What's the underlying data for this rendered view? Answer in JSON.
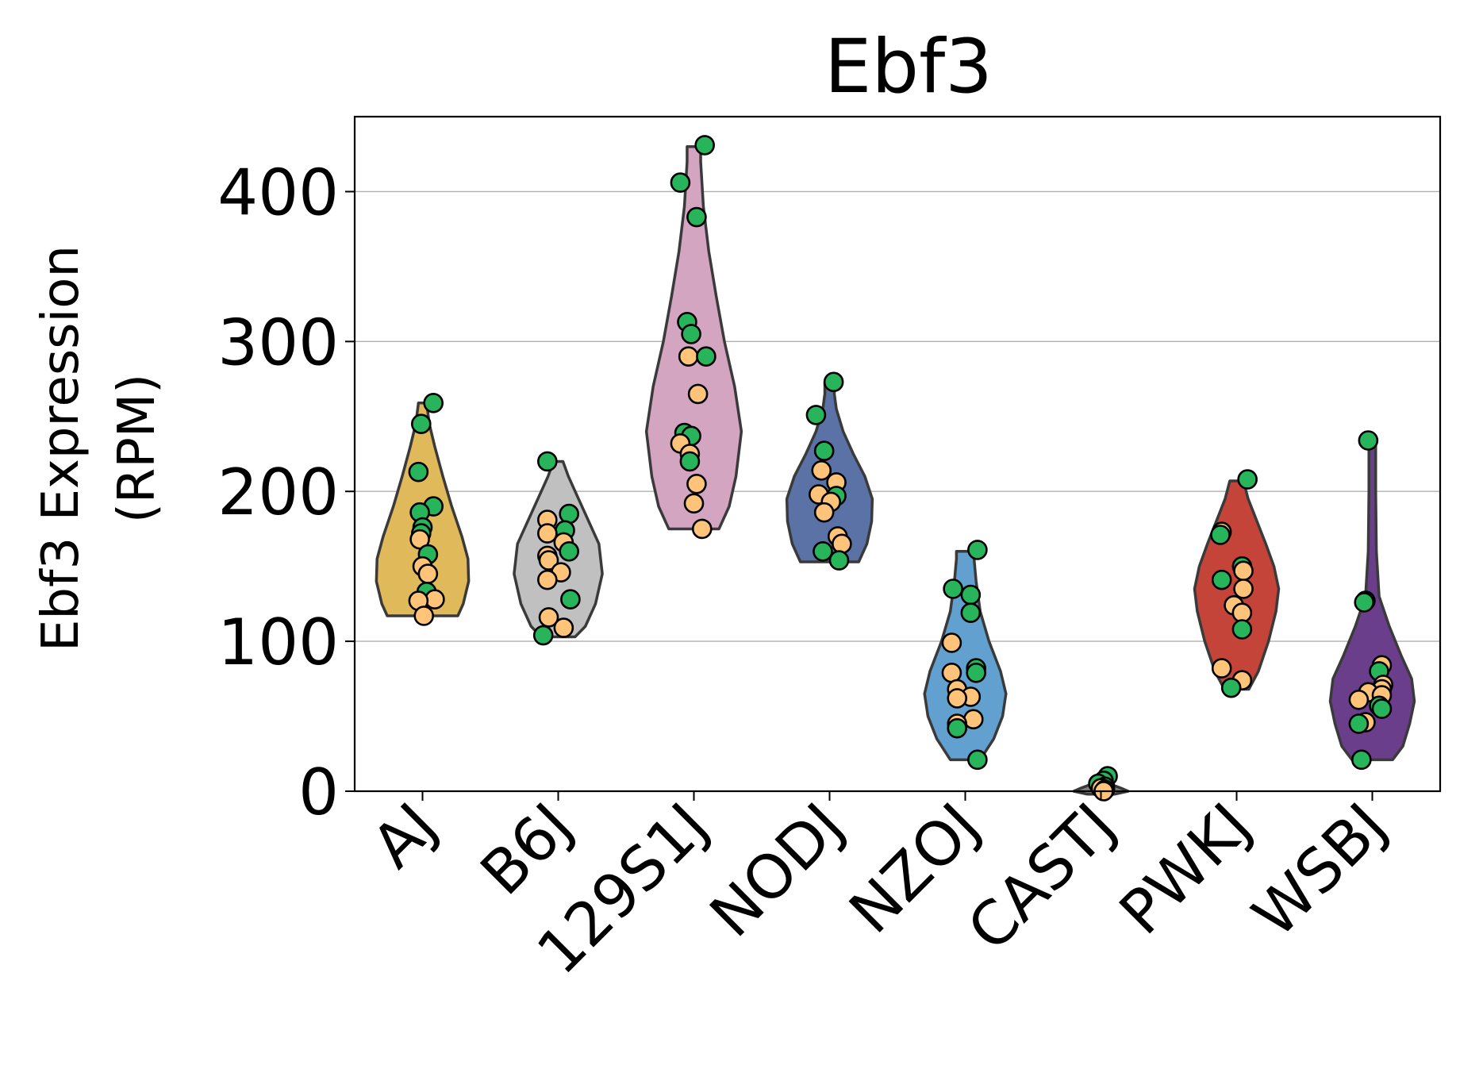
{
  "chart_data": {
    "type": "violin",
    "title": "Ebf3",
    "ylabel_line1": "Ebf3 Expression",
    "ylabel_line2": "(RPM)",
    "xlabel": "",
    "ylim": [
      0,
      450
    ],
    "yticks": [
      0,
      100,
      200,
      300,
      400
    ],
    "grid": "horizontal",
    "categories": [
      "AJ",
      "B6J",
      "129S1J",
      "NODJ",
      "NZOJ",
      "CASTJ",
      "PWKJ",
      "WSBJ"
    ],
    "group_colors": {
      "AJ": "#dfb95a",
      "B6J": "#c0c0c0",
      "129S1J": "#d4a5c1",
      "NODJ": "#5a72a6",
      "NZOJ": "#62a1cf",
      "CASTJ": "#808080",
      "PWKJ": "#c4443a",
      "WSBJ": "#6b3e8c"
    },
    "point_colors": {
      "green": "#27b45a",
      "orange": "#ffc37a"
    },
    "violins": [
      {
        "group": "AJ",
        "profile": [
          [
            117,
            0.52
          ],
          [
            125,
            0.6
          ],
          [
            140,
            0.68
          ],
          [
            155,
            0.67
          ],
          [
            170,
            0.58
          ],
          [
            190,
            0.43
          ],
          [
            210,
            0.3
          ],
          [
            230,
            0.18
          ],
          [
            245,
            0.1
          ],
          [
            259,
            0.06
          ]
        ],
        "points": [
          {
            "v": 259,
            "c": "green",
            "dx": 0.08
          },
          {
            "v": 245,
            "c": "green",
            "dx": -0.01
          },
          {
            "v": 213,
            "c": "green",
            "dx": -0.03
          },
          {
            "v": 190,
            "c": "green",
            "dx": 0.08
          },
          {
            "v": 186,
            "c": "green",
            "dx": -0.02
          },
          {
            "v": 176,
            "c": "green",
            "dx": 0.0
          },
          {
            "v": 172,
            "c": "green",
            "dx": -0.01
          },
          {
            "v": 168,
            "c": "orange",
            "dx": -0.02
          },
          {
            "v": 158,
            "c": "green",
            "dx": 0.04
          },
          {
            "v": 150,
            "c": "orange",
            "dx": 0.0
          },
          {
            "v": 145,
            "c": "orange",
            "dx": 0.04
          },
          {
            "v": 133,
            "c": "green",
            "dx": 0.03
          },
          {
            "v": 128,
            "c": "orange",
            "dx": 0.09
          },
          {
            "v": 127,
            "c": "orange",
            "dx": -0.03
          },
          {
            "v": 117,
            "c": "orange",
            "dx": 0.01
          }
        ]
      },
      {
        "group": "B6J",
        "profile": [
          [
            103,
            0.25
          ],
          [
            110,
            0.4
          ],
          [
            125,
            0.55
          ],
          [
            145,
            0.65
          ],
          [
            165,
            0.6
          ],
          [
            180,
            0.45
          ],
          [
            195,
            0.3
          ],
          [
            210,
            0.15
          ],
          [
            220,
            0.07
          ]
        ],
        "points": [
          {
            "v": 220,
            "c": "green",
            "dx": -0.08
          },
          {
            "v": 185,
            "c": "green",
            "dx": 0.08
          },
          {
            "v": 181,
            "c": "orange",
            "dx": -0.08
          },
          {
            "v": 174,
            "c": "green",
            "dx": 0.05
          },
          {
            "v": 172,
            "c": "orange",
            "dx": -0.08
          },
          {
            "v": 166,
            "c": "orange",
            "dx": 0.04
          },
          {
            "v": 160,
            "c": "green",
            "dx": 0.08
          },
          {
            "v": 157,
            "c": "orange",
            "dx": -0.08
          },
          {
            "v": 154,
            "c": "orange",
            "dx": -0.07
          },
          {
            "v": 146,
            "c": "orange",
            "dx": 0.02
          },
          {
            "v": 141,
            "c": "orange",
            "dx": -0.08
          },
          {
            "v": 128,
            "c": "green",
            "dx": 0.09
          },
          {
            "v": 116,
            "c": "orange",
            "dx": -0.07
          },
          {
            "v": 109,
            "c": "orange",
            "dx": 0.04
          },
          {
            "v": 104,
            "c": "green",
            "dx": -0.11
          }
        ]
      },
      {
        "group": "129S1J",
        "profile": [
          [
            175,
            0.37
          ],
          [
            190,
            0.52
          ],
          [
            210,
            0.62
          ],
          [
            240,
            0.7
          ],
          [
            270,
            0.6
          ],
          [
            300,
            0.45
          ],
          [
            330,
            0.33
          ],
          [
            360,
            0.22
          ],
          [
            390,
            0.14
          ],
          [
            420,
            0.1
          ],
          [
            430,
            0.1
          ]
        ],
        "points": [
          {
            "v": 431,
            "c": "green",
            "dx": 0.08
          },
          {
            "v": 406,
            "c": "green",
            "dx": -0.1
          },
          {
            "v": 383,
            "c": "green",
            "dx": 0.02
          },
          {
            "v": 313,
            "c": "green",
            "dx": -0.05
          },
          {
            "v": 305,
            "c": "green",
            "dx": -0.02
          },
          {
            "v": 290,
            "c": "orange",
            "dx": -0.04
          },
          {
            "v": 290,
            "c": "green",
            "dx": 0.09
          },
          {
            "v": 265,
            "c": "orange",
            "dx": 0.03
          },
          {
            "v": 239,
            "c": "green",
            "dx": -0.07
          },
          {
            "v": 237,
            "c": "green",
            "dx": -0.02
          },
          {
            "v": 232,
            "c": "orange",
            "dx": -0.1
          },
          {
            "v": 225,
            "c": "orange",
            "dx": -0.03
          },
          {
            "v": 220,
            "c": "green",
            "dx": -0.03
          },
          {
            "v": 205,
            "c": "orange",
            "dx": 0.02
          },
          {
            "v": 192,
            "c": "orange",
            "dx": 0.0
          },
          {
            "v": 175,
            "c": "orange",
            "dx": 0.06
          }
        ]
      },
      {
        "group": "NODJ",
        "profile": [
          [
            153,
            0.43
          ],
          [
            165,
            0.55
          ],
          [
            180,
            0.62
          ],
          [
            195,
            0.63
          ],
          [
            210,
            0.52
          ],
          [
            225,
            0.35
          ],
          [
            240,
            0.2
          ],
          [
            255,
            0.1
          ],
          [
            265,
            0.07
          ],
          [
            273,
            0.07
          ]
        ],
        "points": [
          {
            "v": 273,
            "c": "green",
            "dx": 0.03
          },
          {
            "v": 251,
            "c": "green",
            "dx": -0.1
          },
          {
            "v": 227,
            "c": "green",
            "dx": -0.04
          },
          {
            "v": 214,
            "c": "orange",
            "dx": -0.06
          },
          {
            "v": 206,
            "c": "orange",
            "dx": 0.05
          },
          {
            "v": 198,
            "c": "orange",
            "dx": -0.08
          },
          {
            "v": 197,
            "c": "green",
            "dx": 0.05
          },
          {
            "v": 193,
            "c": "orange",
            "dx": 0.01
          },
          {
            "v": 186,
            "c": "orange",
            "dx": -0.04
          },
          {
            "v": 170,
            "c": "orange",
            "dx": 0.06
          },
          {
            "v": 165,
            "c": "orange",
            "dx": 0.09
          },
          {
            "v": 160,
            "c": "green",
            "dx": -0.05
          },
          {
            "v": 154,
            "c": "green",
            "dx": 0.07
          }
        ]
      },
      {
        "group": "NZOJ",
        "profile": [
          [
            21,
            0.22
          ],
          [
            35,
            0.42
          ],
          [
            50,
            0.55
          ],
          [
            65,
            0.6
          ],
          [
            80,
            0.52
          ],
          [
            100,
            0.35
          ],
          [
            120,
            0.22
          ],
          [
            140,
            0.16
          ],
          [
            155,
            0.13
          ],
          [
            160,
            0.13
          ]
        ],
        "points": [
          {
            "v": 161,
            "c": "green",
            "dx": 0.09
          },
          {
            "v": 135,
            "c": "green",
            "dx": -0.09
          },
          {
            "v": 131,
            "c": "green",
            "dx": 0.04
          },
          {
            "v": 119,
            "c": "green",
            "dx": 0.04
          },
          {
            "v": 99,
            "c": "orange",
            "dx": -0.1
          },
          {
            "v": 82,
            "c": "green",
            "dx": 0.08
          },
          {
            "v": 79,
            "c": "orange",
            "dx": -0.1
          },
          {
            "v": 79,
            "c": "green",
            "dx": 0.08
          },
          {
            "v": 68,
            "c": "orange",
            "dx": -0.06
          },
          {
            "v": 63,
            "c": "orange",
            "dx": 0.04
          },
          {
            "v": 62,
            "c": "orange",
            "dx": -0.06
          },
          {
            "v": 48,
            "c": "orange",
            "dx": 0.06
          },
          {
            "v": 45,
            "c": "orange",
            "dx": -0.06
          },
          {
            "v": 42,
            "c": "green",
            "dx": -0.06
          },
          {
            "v": 21,
            "c": "green",
            "dx": 0.09
          }
        ]
      },
      {
        "group": "CASTJ",
        "profile": [
          [
            -2,
            0.2
          ],
          [
            0,
            0.4
          ],
          [
            2,
            0.3
          ],
          [
            4,
            0.18
          ],
          [
            7,
            0.08
          ],
          [
            10,
            0.04
          ]
        ],
        "points": [
          {
            "v": 10,
            "c": "green",
            "dx": 0.05
          },
          {
            "v": 7,
            "c": "green",
            "dx": 0.02
          },
          {
            "v": 5,
            "c": "green",
            "dx": -0.02
          },
          {
            "v": 3,
            "c": "green",
            "dx": 0.03
          },
          {
            "v": 2,
            "c": "orange",
            "dx": 0.0
          },
          {
            "v": 1,
            "c": "orange",
            "dx": 0.03
          },
          {
            "v": 0,
            "c": "orange",
            "dx": 0.02
          }
        ]
      },
      {
        "group": "PWKJ",
        "profile": [
          [
            68,
            0.18
          ],
          [
            80,
            0.32
          ],
          [
            100,
            0.47
          ],
          [
            120,
            0.58
          ],
          [
            135,
            0.62
          ],
          [
            150,
            0.55
          ],
          [
            165,
            0.43
          ],
          [
            180,
            0.3
          ],
          [
            195,
            0.17
          ],
          [
            207,
            0.1
          ]
        ],
        "points": [
          {
            "v": 208,
            "c": "green",
            "dx": 0.08
          },
          {
            "v": 173,
            "c": "orange",
            "dx": -0.11
          },
          {
            "v": 171,
            "c": "green",
            "dx": -0.12
          },
          {
            "v": 150,
            "c": "green",
            "dx": 0.04
          },
          {
            "v": 147,
            "c": "orange",
            "dx": 0.05
          },
          {
            "v": 141,
            "c": "green",
            "dx": -0.11
          },
          {
            "v": 135,
            "c": "orange",
            "dx": 0.05
          },
          {
            "v": 124,
            "c": "orange",
            "dx": -0.02
          },
          {
            "v": 119,
            "c": "orange",
            "dx": 0.04
          },
          {
            "v": 108,
            "c": "green",
            "dx": 0.04
          },
          {
            "v": 82,
            "c": "orange",
            "dx": -0.11
          },
          {
            "v": 74,
            "c": "orange",
            "dx": 0.04
          },
          {
            "v": 69,
            "c": "green",
            "dx": -0.04
          }
        ]
      },
      {
        "group": "WSBJ",
        "profile": [
          [
            21,
            0.3
          ],
          [
            30,
            0.45
          ],
          [
            45,
            0.55
          ],
          [
            60,
            0.62
          ],
          [
            75,
            0.58
          ],
          [
            90,
            0.43
          ],
          [
            110,
            0.25
          ],
          [
            130,
            0.1
          ],
          [
            160,
            0.06
          ],
          [
            200,
            0.05
          ],
          [
            233,
            0.05
          ]
        ],
        "points": [
          {
            "v": 234,
            "c": "green",
            "dx": -0.03
          },
          {
            "v": 127,
            "c": "green",
            "dx": -0.05
          },
          {
            "v": 126,
            "c": "green",
            "dx": -0.06
          },
          {
            "v": 84,
            "c": "orange",
            "dx": 0.07
          },
          {
            "v": 80,
            "c": "green",
            "dx": 0.05
          },
          {
            "v": 71,
            "c": "orange",
            "dx": 0.08
          },
          {
            "v": 68,
            "c": "orange",
            "dx": 0.07
          },
          {
            "v": 66,
            "c": "orange",
            "dx": -0.03
          },
          {
            "v": 64,
            "c": "orange",
            "dx": 0.07
          },
          {
            "v": 61,
            "c": "orange",
            "dx": -0.1
          },
          {
            "v": 57,
            "c": "green",
            "dx": 0.05
          },
          {
            "v": 55,
            "c": "green",
            "dx": 0.07
          },
          {
            "v": 46,
            "c": "orange",
            "dx": -0.05
          },
          {
            "v": 45,
            "c": "green",
            "dx": -0.1
          },
          {
            "v": 21,
            "c": "green",
            "dx": -0.08
          }
        ]
      }
    ]
  }
}
